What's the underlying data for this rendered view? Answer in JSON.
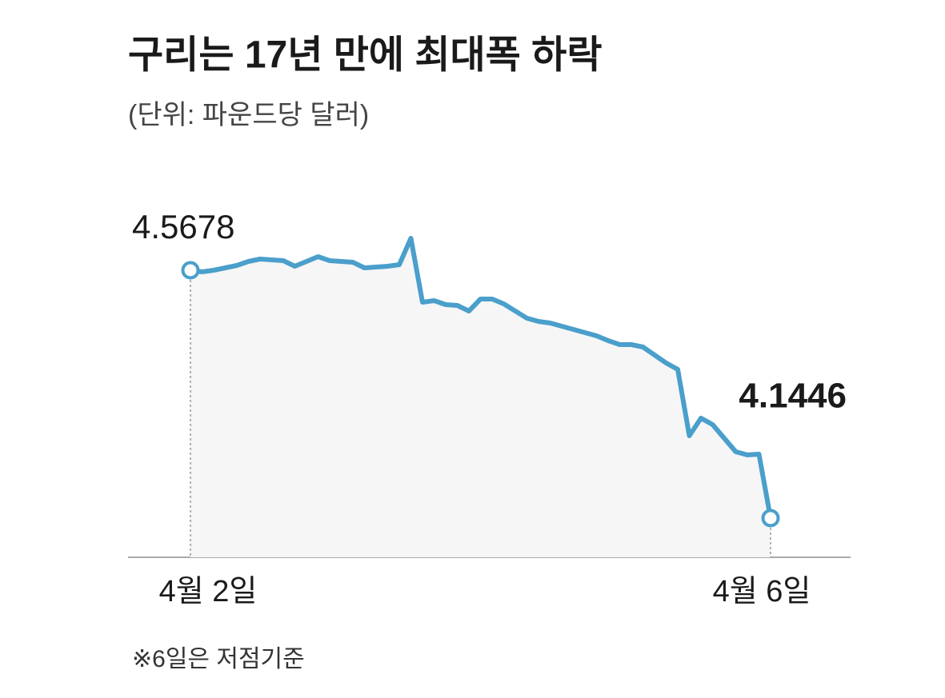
{
  "chart_data": {
    "type": "line",
    "title": "구리는 17년 만에 최대폭 하락",
    "subtitle": "(단위: 파운드당 달러)",
    "note": "※6일은 저점기준",
    "categories": [
      "4월 2일",
      null,
      null,
      null,
      null,
      null,
      null,
      null,
      null,
      null,
      null,
      null,
      null,
      null,
      null,
      null,
      null,
      null,
      null,
      null,
      null,
      null,
      null,
      null,
      null,
      null,
      null,
      null,
      null,
      null,
      null,
      null,
      null,
      null,
      null,
      null,
      null,
      null,
      null,
      null,
      null,
      null,
      null,
      null,
      null,
      null,
      null,
      null,
      null,
      null,
      "4월 6일"
    ],
    "series": [
      {
        "name": "구리",
        "color": "#4a9fcb",
        "values": [
          4.5678,
          4.5651,
          4.5678,
          4.5719,
          4.576,
          4.5828,
          4.5869,
          4.5855,
          4.5842,
          4.5746,
          4.5828,
          4.591,
          4.5842,
          4.5828,
          4.5815,
          4.5719,
          4.5733,
          4.5746,
          4.5774,
          4.6224,
          4.5132,
          4.5159,
          4.5091,
          4.5077,
          4.4982,
          4.5187,
          4.5187,
          4.5105,
          4.4982,
          4.4859,
          4.4804,
          4.4777,
          4.4722,
          4.4668,
          4.4613,
          4.4559,
          4.4477,
          4.4408,
          4.4408,
          4.4367,
          4.4231,
          4.4095,
          4.3985,
          4.2852,
          4.3153,
          4.3043,
          4.2811,
          4.2579,
          4.2524,
          4.2538,
          4.1446
        ]
      }
    ]
  }
}
